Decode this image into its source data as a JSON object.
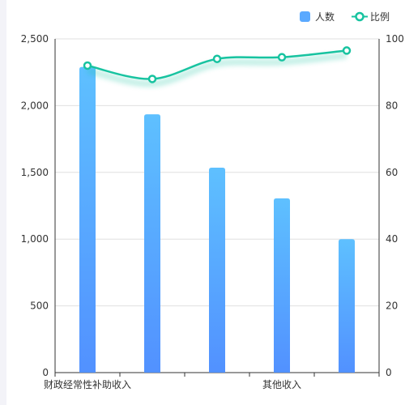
{
  "legend": {
    "items": [
      {
        "label": "人数",
        "kind": "bar",
        "color": "#5aa9ff"
      },
      {
        "label": "比例",
        "kind": "line",
        "color": "#17c3a0"
      }
    ]
  },
  "chart_data": {
    "type": "bar",
    "categories": [
      "财政经常性补助收入",
      "",
      "",
      "其他收入",
      ""
    ],
    "x_tick_labels": [
      "财政经常性补助收入",
      "其他收入"
    ],
    "series": [
      {
        "name": "人数",
        "type": "bar",
        "axis": "left",
        "values": [
          2290,
          1935,
          1535,
          1305,
          1000
        ],
        "color_top": "#5ec0ff",
        "color_bottom": "#5291ff"
      },
      {
        "name": "比例",
        "type": "line",
        "axis": "right",
        "smooth": true,
        "values": [
          92,
          88,
          94,
          94.5,
          96.5
        ],
        "color": "#17c3a0"
      }
    ],
    "y_left": {
      "min": 0,
      "max": 2500,
      "ticks": [
        "0",
        "500",
        "1,000",
        "1,500",
        "2,000",
        "2,500"
      ]
    },
    "y_right": {
      "min": 0,
      "max": 100,
      "ticks": [
        "0",
        "20",
        "40",
        "60",
        "80",
        "100"
      ]
    },
    "grid": true,
    "legend_position": "top-right"
  }
}
